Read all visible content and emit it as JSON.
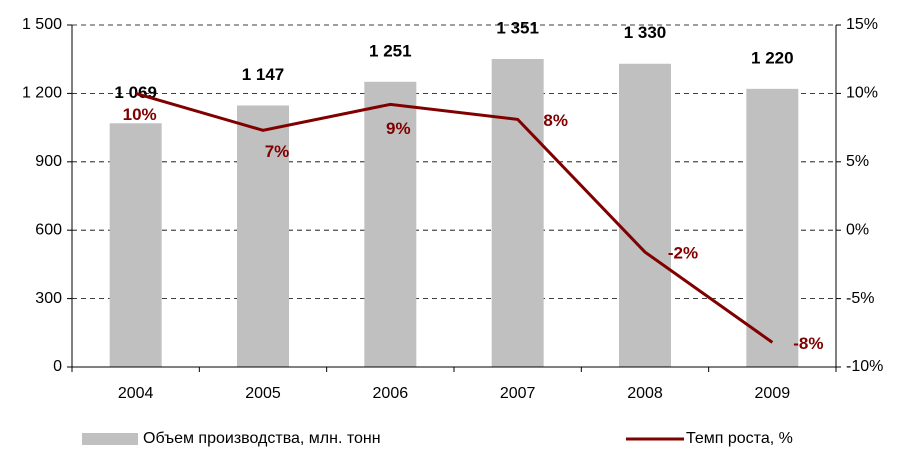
{
  "chart_data": {
    "type": "combo",
    "categories": [
      "2004",
      "2005",
      "2006",
      "2007",
      "2008",
      "2009"
    ],
    "series": [
      {
        "name": "Объем производства, млн. тонн",
        "type": "bar",
        "color": "#c0c0c0",
        "values": [
          1069,
          1147,
          1251,
          1351,
          1330,
          1220
        ],
        "value_labels": [
          "1 069",
          "1 147",
          "1 251",
          "1 351",
          "1 330",
          "1 220"
        ]
      },
      {
        "name": "Темп роста, %",
        "type": "line",
        "axis": "y2",
        "color": "#800000",
        "values": [
          10,
          7.3,
          9.2,
          8.1,
          -1.6,
          -8.2
        ],
        "value_labels": [
          "10%",
          "7%",
          "9%",
          "8%",
          "-2%",
          "-8%"
        ]
      }
    ],
    "ylim": [
      0,
      1500
    ],
    "yticks": [
      0,
      300,
      600,
      900,
      {
        "value": 1200,
        "label": "1 200"
      },
      {
        "value": 1500,
        "label": "1 500"
      }
    ],
    "y2lim": [
      -10,
      15
    ],
    "y2ticks": [
      {
        "value": -10,
        "label": "-10%"
      },
      {
        "value": -5,
        "label": "-5%"
      },
      {
        "value": 0,
        "label": "0%"
      },
      {
        "value": 5,
        "label": "5%"
      },
      {
        "value": 10,
        "label": "10%"
      },
      {
        "value": 15,
        "label": "15%"
      }
    ],
    "grid": true
  }
}
